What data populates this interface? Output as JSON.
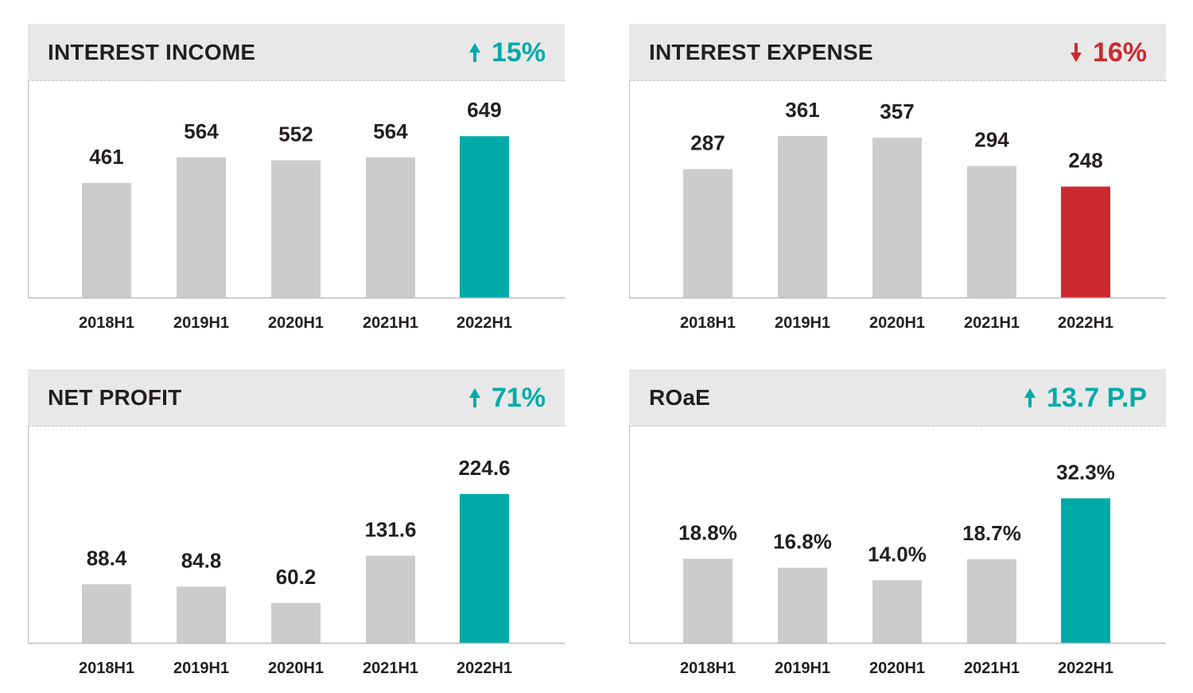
{
  "colors": {
    "bar_default": "#cccccc",
    "highlight_up": "#00aaa8",
    "highlight_down": "#cc2a2e",
    "header_bg": "#e8e8e8",
    "axis": "#bdbdbd",
    "text": "#231f20"
  },
  "panels": [
    {
      "title": "INTEREST INCOME",
      "change": {
        "direction": "up",
        "icon": "arrow-up-icon",
        "text": "15%"
      }
    },
    {
      "title": "INTEREST EXPENSE",
      "change": {
        "direction": "down",
        "icon": "arrow-down-icon",
        "text": "16%"
      }
    },
    {
      "title": "NET PROFIT",
      "change": {
        "direction": "up",
        "icon": "arrow-up-icon",
        "text": "71%"
      }
    },
    {
      "title": "ROaE",
      "change": {
        "direction": "up",
        "icon": "arrow-up-icon",
        "text": "13.7 P.P"
      }
    }
  ],
  "chart_data": [
    {
      "type": "bar",
      "title": "INTEREST INCOME",
      "categories": [
        "2018H1",
        "2019H1",
        "2020H1",
        "2021H1",
        "2022H1"
      ],
      "values": [
        461,
        564,
        552,
        564,
        649
      ],
      "value_labels": [
        "461",
        "564",
        "552",
        "564",
        "649"
      ],
      "highlight_index": 4,
      "highlight_color": "#00aaa8",
      "ylim": [
        0,
        720
      ],
      "grid": false,
      "legend": "none"
    },
    {
      "type": "bar",
      "title": "INTEREST EXPENSE",
      "categories": [
        "2018H1",
        "2019H1",
        "2020H1",
        "2021H1",
        "2022H1"
      ],
      "values": [
        287,
        361,
        357,
        294,
        248
      ],
      "value_labels": [
        "287",
        "361",
        "357",
        "294",
        "248"
      ],
      "highlight_index": 4,
      "highlight_color": "#cc2a2e",
      "ylim": [
        0,
        400
      ],
      "grid": false,
      "legend": "none"
    },
    {
      "type": "bar",
      "title": "NET PROFIT",
      "categories": [
        "2018H1",
        "2019H1",
        "2020H1",
        "2021H1",
        "2022H1"
      ],
      "values": [
        88.4,
        84.8,
        60.2,
        131.6,
        224.6
      ],
      "value_labels": [
        "88.4",
        "84.8",
        "60.2",
        "131.6",
        "224.6"
      ],
      "highlight_index": 4,
      "highlight_color": "#00aaa8",
      "ylim": [
        0,
        270
      ],
      "grid": false,
      "legend": "none"
    },
    {
      "type": "bar",
      "title": "ROaE",
      "categories": [
        "2018H1",
        "2019H1",
        "2020H1",
        "2021H1",
        "2022H1"
      ],
      "values": [
        18.8,
        16.8,
        14.0,
        18.7,
        32.3
      ],
      "value_labels": [
        "18.8%",
        "16.8%",
        "14.0%",
        "18.7%",
        "32.3%"
      ],
      "highlight_index": 4,
      "highlight_color": "#00aaa8",
      "ylim": [
        0,
        40
      ],
      "grid": false,
      "legend": "none"
    }
  ]
}
